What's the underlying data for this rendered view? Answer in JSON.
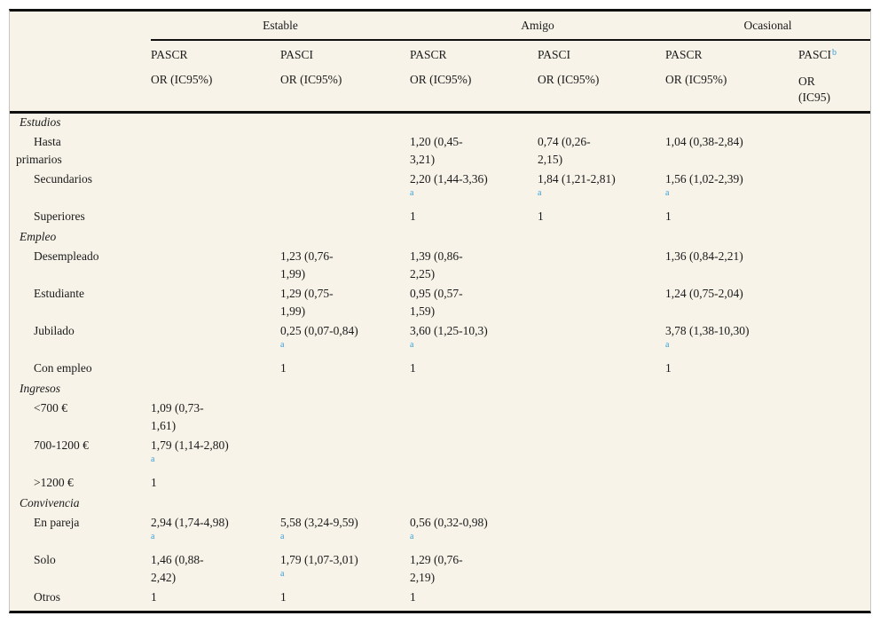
{
  "table": {
    "group_headers": [
      {
        "label": "Estable"
      },
      {
        "label": "Amigo"
      },
      {
        "label": "Ocasional"
      }
    ],
    "column_headers": [
      {
        "name": "PASCR",
        "sub": "OR (IC95%)"
      },
      {
        "name": "PASCI",
        "sub": "OR (IC95%)"
      },
      {
        "name": "PASCR",
        "sub": "OR (IC95%)"
      },
      {
        "name": "PASCI",
        "sub": "OR (IC95%)"
      },
      {
        "name": "PASCR",
        "sub": "OR (IC95%)"
      },
      {
        "name": "PASCI",
        "sup": "b",
        "sub": "OR (IC95)"
      }
    ],
    "column_keys": [
      "estable-pascr",
      "estable-pasci",
      "amigo-pascr",
      "amigo-pasci",
      "ocasional-pascr",
      "ocasional-pasci"
    ],
    "footnote_marker_color": "#3b9fd8",
    "background_color": "#f7f3e9",
    "rows": [
      {
        "type": "section",
        "label": "Estudios",
        "cells": [
          null,
          null,
          null,
          null,
          null,
          null
        ]
      },
      {
        "type": "tall",
        "hang": true,
        "label": "Hasta\nprimarios",
        "cells": [
          null,
          null,
          {
            "text": "1,20 (0,45-\n3,21)"
          },
          {
            "text": "0,74 (0,26-\n2,15)"
          },
          {
            "text": "1,04 (0,38-2,84)"
          },
          null
        ]
      },
      {
        "type": "tall",
        "label": "Secundarios",
        "cells": [
          null,
          null,
          {
            "text": "2,20 (1,44-3,36)",
            "sup": "a"
          },
          {
            "text": "1,84 (1,21-2,81)",
            "sup": "a"
          },
          {
            "text": "1,56 (1,02-2,39)",
            "sup": "a"
          },
          null
        ]
      },
      {
        "type": "short",
        "label": "Superiores",
        "cells": [
          null,
          null,
          {
            "text": "1"
          },
          {
            "text": "1"
          },
          {
            "text": "1"
          },
          null
        ]
      },
      {
        "type": "section",
        "label": "Empleo",
        "cells": [
          null,
          null,
          null,
          null,
          null,
          null
        ]
      },
      {
        "type": "tall",
        "label": "Desempleado",
        "cells": [
          null,
          {
            "text": "1,23 (0,76-\n1,99)"
          },
          {
            "text": "1,39 (0,86-\n2,25)"
          },
          null,
          {
            "text": "1,36 (0,84-2,21)"
          },
          null
        ]
      },
      {
        "type": "tall",
        "label": "Estudiante",
        "cells": [
          null,
          {
            "text": "1,29 (0,75-\n1,99)"
          },
          {
            "text": "0,95 (0,57-\n1,59)"
          },
          null,
          {
            "text": "1,24 (0,75-2,04)"
          },
          null
        ]
      },
      {
        "type": "tall",
        "label": "Jubilado",
        "cells": [
          null,
          {
            "text": "0,25 (0,07-0,84)",
            "sup": "a"
          },
          {
            "text": "3,60 (1,25-10,3)",
            "sup": "a"
          },
          null,
          {
            "text": "3,78 (1,38-10,30)",
            "sup": "a"
          },
          null
        ]
      },
      {
        "type": "short",
        "label": "Con empleo",
        "cells": [
          null,
          {
            "text": "1"
          },
          {
            "text": "1"
          },
          null,
          {
            "text": "1"
          },
          null
        ]
      },
      {
        "type": "section",
        "label": "Ingresos",
        "cells": [
          null,
          null,
          null,
          null,
          null,
          null
        ]
      },
      {
        "type": "tall",
        "label": "<700 €",
        "cells": [
          {
            "text": "1,09 (0,73-\n1,61)"
          },
          null,
          null,
          null,
          null,
          null
        ]
      },
      {
        "type": "tall",
        "label": "700-1200 €",
        "cells": [
          {
            "text": "1,79 (1,14-2,80)",
            "sup": "a"
          },
          null,
          null,
          null,
          null,
          null
        ]
      },
      {
        "type": "short",
        "label": ">1200 €",
        "cells": [
          {
            "text": "1"
          },
          null,
          null,
          null,
          null,
          null
        ]
      },
      {
        "type": "section",
        "label": "Convivencia",
        "cells": [
          null,
          null,
          null,
          null,
          null,
          null
        ]
      },
      {
        "type": "tall",
        "label": "En pareja",
        "cells": [
          {
            "text": "2,94 (1,74-4,98)",
            "sup": "a"
          },
          {
            "text": "5,58 (3,24-9,59)",
            "sup": "a"
          },
          {
            "text": "0,56 (0,32-0,98)",
            "sup": "a"
          },
          null,
          null,
          null
        ]
      },
      {
        "type": "tall",
        "label": "Solo",
        "cells": [
          {
            "text": "1,46 (0,88-\n2,42)"
          },
          {
            "text": "1,79 (1,07-3,01)",
            "sup": "a"
          },
          {
            "text": "1,29 (0,76-\n2,19)"
          },
          null,
          null,
          null
        ]
      },
      {
        "type": "short",
        "label": "Otros",
        "cells": [
          {
            "text": "1"
          },
          {
            "text": "1"
          },
          {
            "text": "1"
          },
          null,
          null,
          null
        ]
      }
    ]
  }
}
